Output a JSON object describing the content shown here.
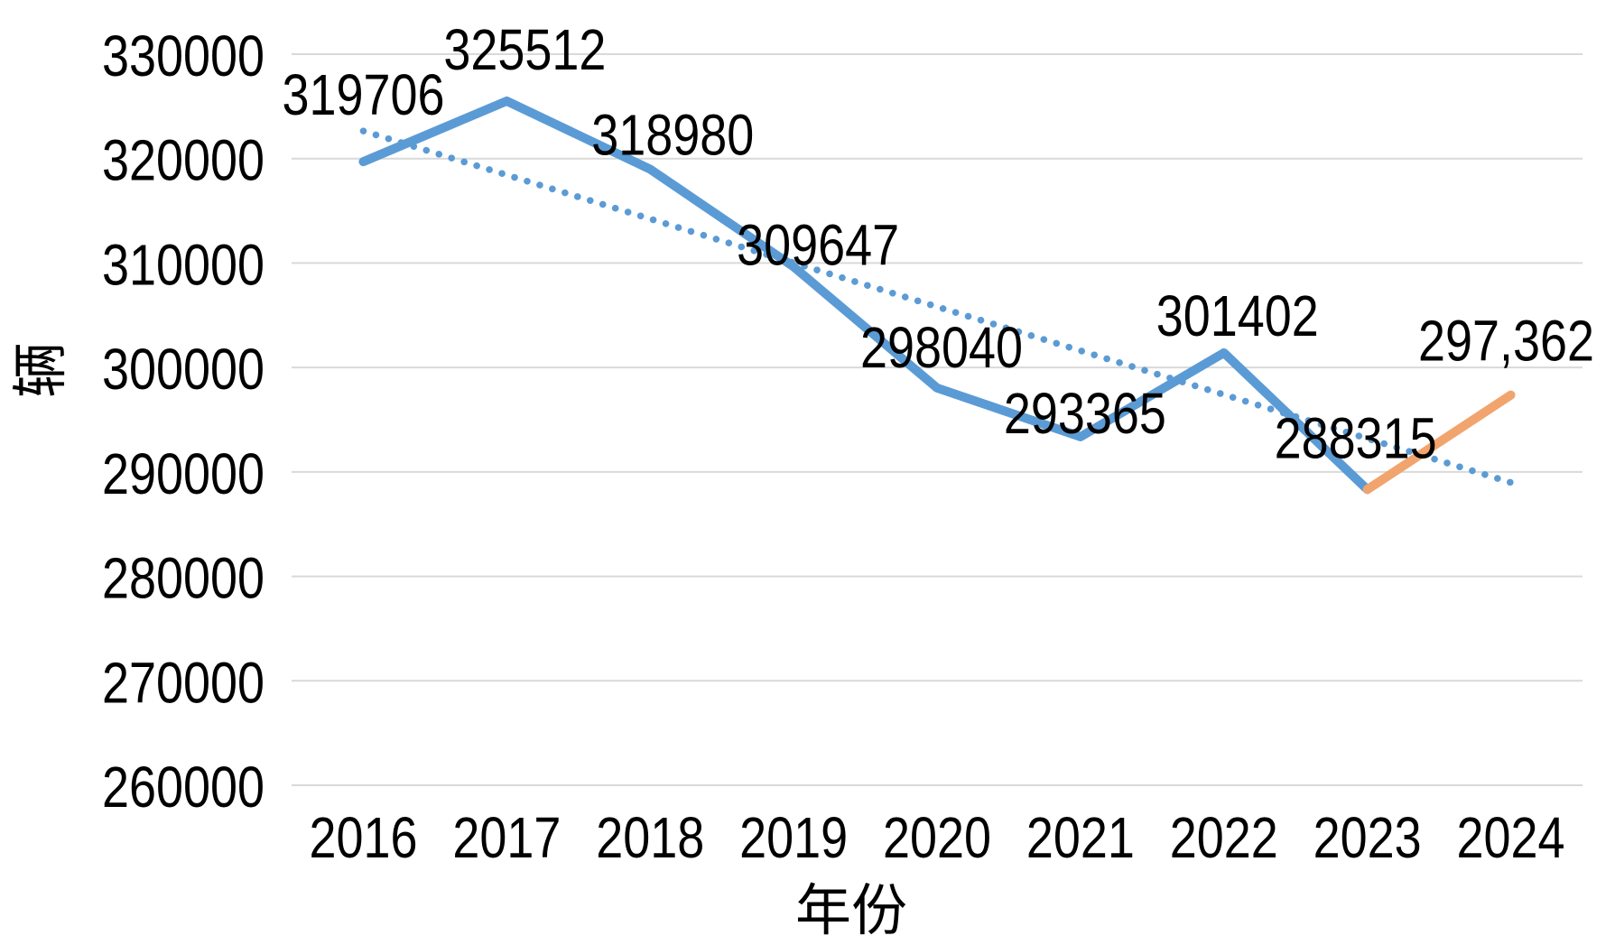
{
  "chart_data": {
    "type": "line",
    "title": "",
    "xlabel": "年份",
    "ylabel": "辆",
    "categories": [
      "2016",
      "2017",
      "2018",
      "2019",
      "2020",
      "2021",
      "2022",
      "2023",
      "2024"
    ],
    "values": [
      319706,
      325512,
      318980,
      309647,
      298040,
      293365,
      301402,
      288315,
      297362
    ],
    "point_labels": [
      "319706",
      "325512",
      "318980",
      "309647",
      "298040",
      "293365",
      "301402",
      "288315",
      "297,362"
    ],
    "segments": [
      {
        "name": "historical-line",
        "color": "#5B9BD5",
        "from": 0,
        "to": 7
      },
      {
        "name": "forecast-line",
        "color": "#F2A46E",
        "from": 7,
        "to": 8
      }
    ],
    "trendline": {
      "name": "linear-trendline",
      "color": "#5B9BD5",
      "style": "dotted",
      "start_value": 322641,
      "end_value": 288987
    },
    "yticks": [
      330000,
      320000,
      310000,
      300000,
      290000,
      280000,
      270000,
      260000
    ],
    "ylim": [
      260000,
      330000
    ],
    "grid": true,
    "grid_color": "#D9D9D9",
    "text_color": "#000000",
    "background": "#FFFFFF",
    "legend": "none"
  }
}
